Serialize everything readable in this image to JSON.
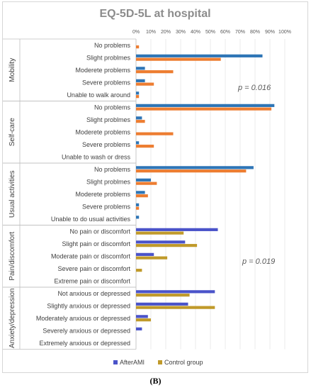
{
  "caption": "(B)",
  "chart_data": {
    "type": "bar",
    "orientation": "horizontal",
    "title": "EQ-5D-5L at hospital",
    "xlim": [
      0,
      100
    ],
    "x_ticks": [
      "0%",
      "10%",
      "20%",
      "30%",
      "40%",
      "50%",
      "60%",
      "70%",
      "80%",
      "90%",
      "100%"
    ],
    "grid": true,
    "legend_position": "bottom",
    "annotations": [
      {
        "text": "p = 0.016",
        "group": "Mobility"
      },
      {
        "text": "p = 0.019",
        "group": "Pain/discomfort"
      }
    ],
    "groups": [
      {
        "name": "Mobility",
        "colors": [
          "#2e75b6",
          "#ed7d31"
        ],
        "categories": [
          {
            "label": "No problems",
            "values": [
              0,
              2
            ]
          },
          {
            "label": "Slight problmes",
            "values": [
              85,
              57
            ]
          },
          {
            "label": "Moderete problems",
            "values": [
              6,
              25
            ]
          },
          {
            "label": "Severe problems",
            "values": [
              6,
              12
            ]
          },
          {
            "label": "Unable to walk around",
            "values": [
              2,
              2
            ]
          }
        ]
      },
      {
        "name": "Self-care",
        "colors": [
          "#2e75b6",
          "#ed7d31"
        ],
        "categories": [
          {
            "label": "No problems",
            "values": [
              93,
              91
            ]
          },
          {
            "label": "Slight problmes",
            "values": [
              4,
              6
            ]
          },
          {
            "label": "Moderete problems",
            "values": [
              0,
              25
            ]
          },
          {
            "label": "Severe problems",
            "values": [
              2,
              12
            ]
          },
          {
            "label": "Unable to wash or dress",
            "values": [
              0,
              0
            ]
          }
        ]
      },
      {
        "name": "Usual activities",
        "colors": [
          "#2e75b6",
          "#ed7d31"
        ],
        "categories": [
          {
            "label": "No problems",
            "values": [
              79,
              74
            ]
          },
          {
            "label": "Slight problmes",
            "values": [
              10,
              14
            ]
          },
          {
            "label": "Moderete problems",
            "values": [
              6,
              8
            ]
          },
          {
            "label": "Severe problems",
            "values": [
              2,
              2
            ]
          },
          {
            "label": "Unable to do usual activities",
            "values": [
              2,
              0
            ]
          }
        ]
      },
      {
        "name": "Pain/discomfort",
        "colors": [
          "#4a53c9",
          "#c09a2a"
        ],
        "categories": [
          {
            "label": "No pain or discomfort",
            "values": [
              55,
              32
            ]
          },
          {
            "label": "Slight pain or discomfort",
            "values": [
              33,
              41
            ]
          },
          {
            "label": "Moderate pain or discomfort",
            "values": [
              12,
              21
            ]
          },
          {
            "label": "Severe pain or discomfort",
            "values": [
              0,
              4
            ]
          },
          {
            "label": "Extreme pain or discomfort",
            "values": [
              0,
              0
            ]
          }
        ]
      },
      {
        "name": "Anxiety/depression",
        "colors": [
          "#4a53c9",
          "#c09a2a"
        ],
        "categories": [
          {
            "label": "Not anxious or depressed",
            "values": [
              53,
              36
            ]
          },
          {
            "label": "Slightly anxious or depressed",
            "values": [
              35,
              53
            ]
          },
          {
            "label": "Moderately anxious or depressed",
            "values": [
              8,
              10
            ]
          },
          {
            "label": "Severely anxious or depressed",
            "values": [
              4,
              0
            ]
          },
          {
            "label": "Extremely anxious or depressed",
            "values": [
              0,
              0
            ]
          }
        ]
      }
    ],
    "series": [
      {
        "name": "AfterAMI",
        "color": "#4a53c9"
      },
      {
        "name": "Control group",
        "color": "#c09a2a"
      }
    ]
  }
}
